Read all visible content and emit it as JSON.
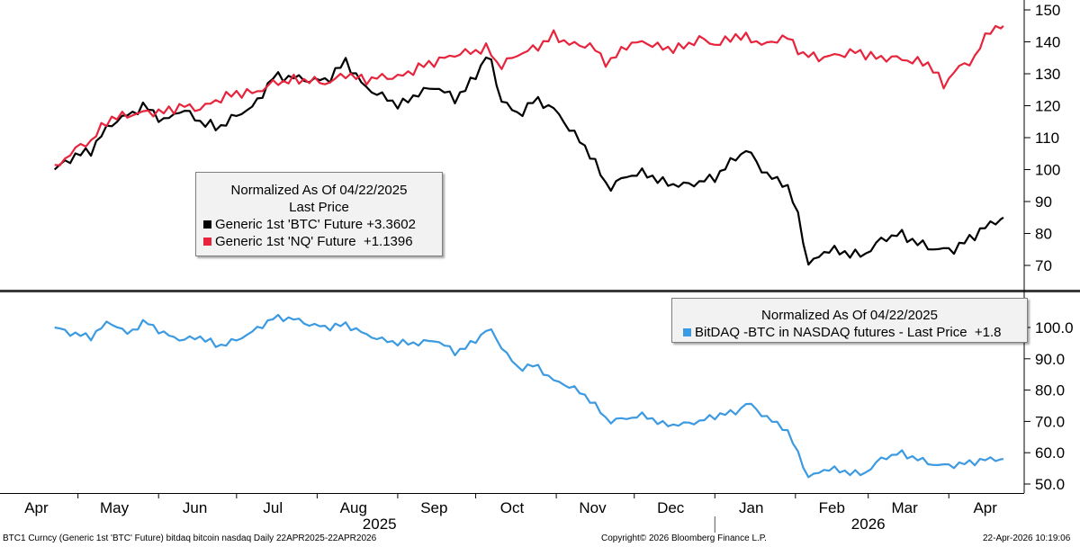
{
  "chart_data": [
    {
      "type": "line",
      "title": "Normalized As Of 04/22/2025",
      "subtitle": "Last Price",
      "ylim": [
        63,
        153
      ],
      "yticks": [
        70,
        80,
        90,
        100,
        110,
        120,
        130,
        140,
        150
      ],
      "axis_side": "right",
      "legend_position": "left-middle",
      "series": [
        {
          "name": "Generic 1st 'BTC' Future",
          "value_label": "+3.3602",
          "color": "#000000",
          "points": [
            [
              "2025-04-22",
              100
            ],
            [
              "2025-04-29",
              104
            ],
            [
              "2025-05-06",
              106
            ],
            [
              "2025-05-13",
              114
            ],
            [
              "2025-05-20",
              117
            ],
            [
              "2025-05-27",
              120
            ],
            [
              "2025-06-03",
              115
            ],
            [
              "2025-06-10",
              119
            ],
            [
              "2025-06-17",
              115
            ],
            [
              "2025-06-24",
              113
            ],
            [
              "2025-07-01",
              117
            ],
            [
              "2025-07-08",
              120
            ],
            [
              "2025-07-15",
              129
            ],
            [
              "2025-07-22",
              129
            ],
            [
              "2025-07-29",
              128
            ],
            [
              "2025-08-05",
              128
            ],
            [
              "2025-08-12",
              134
            ],
            [
              "2025-08-19",
              126
            ],
            [
              "2025-08-26",
              123
            ],
            [
              "2025-09-02",
              120
            ],
            [
              "2025-09-09",
              124
            ],
            [
              "2025-09-16",
              126
            ],
            [
              "2025-09-23",
              122
            ],
            [
              "2025-09-30",
              128
            ],
            [
              "2025-10-06",
              137
            ],
            [
              "2025-10-10",
              123
            ],
            [
              "2025-10-17",
              117
            ],
            [
              "2025-10-24",
              122
            ],
            [
              "2025-10-31",
              119
            ],
            [
              "2025-11-07",
              112
            ],
            [
              "2025-11-14",
              105
            ],
            [
              "2025-11-21",
              94
            ],
            [
              "2025-11-28",
              98
            ],
            [
              "2025-12-05",
              99
            ],
            [
              "2025-12-12",
              96
            ],
            [
              "2025-12-19",
              95
            ],
            [
              "2025-12-26",
              96
            ],
            [
              "2026-01-02",
              98
            ],
            [
              "2026-01-09",
              104
            ],
            [
              "2026-01-14",
              106
            ],
            [
              "2026-01-21",
              98
            ],
            [
              "2026-01-28",
              96
            ],
            [
              "2026-02-02",
              86
            ],
            [
              "2026-02-06",
              70
            ],
            [
              "2026-02-13",
              75
            ],
            [
              "2026-02-20",
              74
            ],
            [
              "2026-02-27",
              73
            ],
            [
              "2026-03-06",
              78
            ],
            [
              "2026-03-13",
              80
            ],
            [
              "2026-03-20",
              77
            ],
            [
              "2026-03-27",
              75
            ],
            [
              "2026-04-03",
              75
            ],
            [
              "2026-04-10",
              79
            ],
            [
              "2026-04-17",
              83
            ],
            [
              "2026-04-22",
              85
            ]
          ]
        },
        {
          "name": "Generic 1st 'NQ' Future",
          "value_label": "+1.1396",
          "color": "#e8233c",
          "points": [
            [
              "2025-04-22",
              100
            ],
            [
              "2025-04-29",
              106
            ],
            [
              "2025-05-06",
              109
            ],
            [
              "2025-05-13",
              116
            ],
            [
              "2025-05-20",
              117
            ],
            [
              "2025-05-27",
              118
            ],
            [
              "2025-06-03",
              118
            ],
            [
              "2025-06-10",
              120
            ],
            [
              "2025-06-17",
              119
            ],
            [
              "2025-06-24",
              122
            ],
            [
              "2025-07-01",
              124
            ],
            [
              "2025-07-08",
              124
            ],
            [
              "2025-07-15",
              127
            ],
            [
              "2025-07-22",
              128
            ],
            [
              "2025-07-29",
              128
            ],
            [
              "2025-08-05",
              127
            ],
            [
              "2025-08-12",
              130
            ],
            [
              "2025-08-19",
              128
            ],
            [
              "2025-08-26",
              129
            ],
            [
              "2025-09-02",
              129
            ],
            [
              "2025-09-09",
              132
            ],
            [
              "2025-09-16",
              134
            ],
            [
              "2025-09-23",
              136
            ],
            [
              "2025-09-30",
              137
            ],
            [
              "2025-10-06",
              138
            ],
            [
              "2025-10-10",
              132
            ],
            [
              "2025-10-17",
              136
            ],
            [
              "2025-10-24",
              138
            ],
            [
              "2025-10-31",
              142
            ],
            [
              "2025-11-07",
              139
            ],
            [
              "2025-11-14",
              139
            ],
            [
              "2025-11-21",
              133
            ],
            [
              "2025-11-28",
              139
            ],
            [
              "2025-12-05",
              140
            ],
            [
              "2025-12-12",
              138
            ],
            [
              "2025-12-19",
              138
            ],
            [
              "2025-12-26",
              141
            ],
            [
              "2026-01-02",
              139
            ],
            [
              "2026-01-09",
              142
            ],
            [
              "2026-01-14",
              141
            ],
            [
              "2026-01-21",
              139
            ],
            [
              "2026-01-28",
              142
            ],
            [
              "2026-02-04",
              136
            ],
            [
              "2026-02-11",
              135
            ],
            [
              "2026-02-18",
              136
            ],
            [
              "2026-02-25",
              137
            ],
            [
              "2026-03-04",
              135
            ],
            [
              "2026-03-11",
              135
            ],
            [
              "2026-03-18",
              134
            ],
            [
              "2026-03-25",
              133
            ],
            [
              "2026-03-30",
              126
            ],
            [
              "2026-04-03",
              131
            ],
            [
              "2026-04-10",
              134
            ],
            [
              "2026-04-17",
              144
            ],
            [
              "2026-04-22",
              145
            ]
          ]
        }
      ]
    },
    {
      "type": "line",
      "title": "Normalized As Of 04/22/2025",
      "ylim": [
        47,
        108
      ],
      "yticks": [
        50,
        60,
        70,
        80,
        90,
        100
      ],
      "ytick_labels": [
        "50.0",
        "60.0",
        "70.0",
        "80.0",
        "90.0",
        "100.0"
      ],
      "axis_side": "right",
      "legend_position": "top-right",
      "series": [
        {
          "name": "BitDAQ -BTC in NASDAQ futures - Last Price",
          "value_label": "+1.8",
          "color": "#3b9ae1",
          "points": [
            [
              "2025-04-22",
              100
            ],
            [
              "2025-04-29",
              98
            ],
            [
              "2025-05-06",
              97
            ],
            [
              "2025-05-13",
              102
            ],
            [
              "2025-05-20",
              98
            ],
            [
              "2025-05-27",
              102
            ],
            [
              "2025-06-03",
              98
            ],
            [
              "2025-06-10",
              96
            ],
            [
              "2025-06-17",
              97
            ],
            [
              "2025-06-24",
              94
            ],
            [
              "2025-07-01",
              96
            ],
            [
              "2025-07-08",
              99
            ],
            [
              "2025-07-15",
              103
            ],
            [
              "2025-07-22",
              103
            ],
            [
              "2025-07-29",
              101
            ],
            [
              "2025-08-05",
              100
            ],
            [
              "2025-08-12",
              101
            ],
            [
              "2025-08-19",
              98
            ],
            [
              "2025-08-26",
              96
            ],
            [
              "2025-09-02",
              95
            ],
            [
              "2025-09-09",
              95
            ],
            [
              "2025-09-16",
              96
            ],
            [
              "2025-09-23",
              92
            ],
            [
              "2025-09-30",
              95
            ],
            [
              "2025-10-06",
              100
            ],
            [
              "2025-10-10",
              95
            ],
            [
              "2025-10-17",
              87
            ],
            [
              "2025-10-24",
              88
            ],
            [
              "2025-10-31",
              83
            ],
            [
              "2025-11-07",
              81
            ],
            [
              "2025-11-14",
              77
            ],
            [
              "2025-11-21",
              70
            ],
            [
              "2025-11-28",
              71
            ],
            [
              "2025-12-05",
              72
            ],
            [
              "2025-12-12",
              69
            ],
            [
              "2025-12-19",
              69
            ],
            [
              "2025-12-26",
              70
            ],
            [
              "2026-01-02",
              72
            ],
            [
              "2026-01-09",
              73
            ],
            [
              "2026-01-14",
              76
            ],
            [
              "2026-01-21",
              71
            ],
            [
              "2026-01-28",
              68
            ],
            [
              "2026-02-02",
              60
            ],
            [
              "2026-02-06",
              52
            ],
            [
              "2026-02-13",
              55
            ],
            [
              "2026-02-20",
              54
            ],
            [
              "2026-02-27",
              53
            ],
            [
              "2026-03-06",
              58
            ],
            [
              "2026-03-13",
              60
            ],
            [
              "2026-03-20",
              58
            ],
            [
              "2026-03-27",
              56
            ],
            [
              "2026-04-03",
              56
            ],
            [
              "2026-04-10",
              57
            ],
            [
              "2026-04-17",
              58
            ],
            [
              "2026-04-22",
              58
            ]
          ]
        }
      ]
    }
  ],
  "x_axis": {
    "start": "2025-04-01",
    "end": "2026-04-30",
    "months": [
      {
        "label": "Apr",
        "date": "2025-04-15"
      },
      {
        "label": "May",
        "date": "2025-05-15"
      },
      {
        "label": "Jun",
        "date": "2025-06-15"
      },
      {
        "label": "Jul",
        "date": "2025-07-15"
      },
      {
        "label": "Aug",
        "date": "2025-08-15"
      },
      {
        "label": "Sep",
        "date": "2025-09-15"
      },
      {
        "label": "Oct",
        "date": "2025-10-15"
      },
      {
        "label": "Nov",
        "date": "2025-11-15"
      },
      {
        "label": "Dec",
        "date": "2025-12-15"
      },
      {
        "label": "Jan",
        "date": "2026-01-15"
      },
      {
        "label": "Feb",
        "date": "2026-02-15"
      },
      {
        "label": "Mar",
        "date": "2026-03-15"
      },
      {
        "label": "Apr",
        "date": "2026-04-15"
      }
    ],
    "years": [
      {
        "label": "2025",
        "date": "2025-08-25"
      },
      {
        "label": "2026",
        "date": "2026-03-01"
      }
    ],
    "year_divider_date": "2026-01-01"
  },
  "legend_top": {
    "title": "Normalized As Of 04/22/2025",
    "subtitle": "Last Price",
    "row1": "Generic 1st 'BTC' Future +3.3602",
    "row2": "Generic 1st 'NQ' Future  +1.1396"
  },
  "legend_bottom": {
    "title": "Normalized As Of 04/22/2025",
    "row1": "BitDAQ -BTC in NASDAQ futures - Last Price  +1.8"
  },
  "footer": {
    "left": "BTC1 Curncy (Generic 1st 'BTC' Future) bitdaq bitcoin nasdaq Daily 22APR2025-22APR2026",
    "center": "Copyright© 2026 Bloomberg Finance L.P.",
    "right": "22-Apr-2026 10:19:06"
  },
  "colors": {
    "btc": "#000000",
    "nq": "#e8233c",
    "bitdaq": "#3b9ae1",
    "divider": "#3a3a3a"
  }
}
